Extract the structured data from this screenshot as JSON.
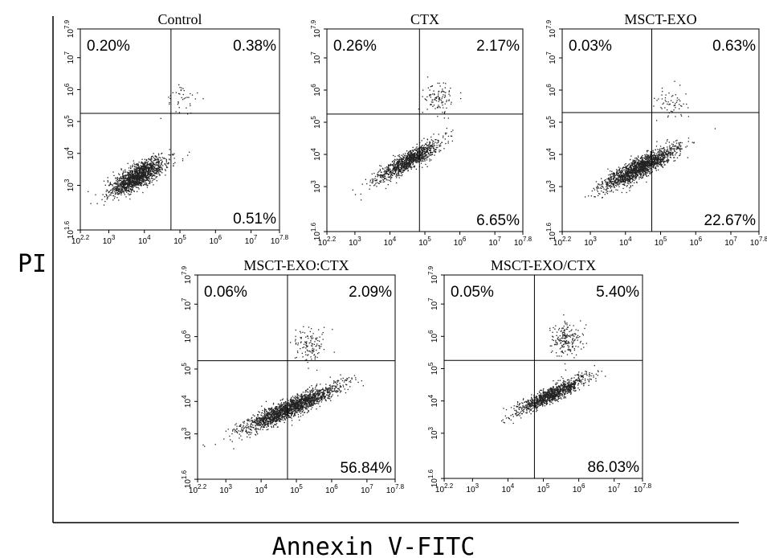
{
  "figure": {
    "y_axis_label": "PI",
    "x_axis_label": "Annexin V-FITC"
  },
  "chart_data": [
    {
      "type": "scatter",
      "title": "Control",
      "x_scale": "log",
      "y_scale": "log",
      "xlim": [
        158,
        63096000
      ],
      "ylim": [
        40,
        79433000
      ],
      "x_ticks": [
        "2.2",
        "3",
        "4",
        "5",
        "6",
        "7",
        "7.8"
      ],
      "y_ticks": [
        "1.6",
        "3",
        "4",
        "5",
        "6",
        "7",
        "7.9"
      ],
      "quadrant_gate": {
        "x": 56000,
        "y": 180000
      },
      "quadrants": {
        "upper_left": "0.20%",
        "upper_right": "0.38%",
        "lower_right": "0.51%"
      },
      "population": {
        "center_log": [
          3.8,
          3.3
        ],
        "count": 1500,
        "spread": 0.28,
        "elong": 0.45,
        "slope": 0.7
      },
      "upper_population": {
        "center_log": [
          5.1,
          5.7
        ],
        "count": 40
      },
      "colors": {
        "points": "#222222"
      }
    },
    {
      "type": "scatter",
      "title": "CTX",
      "x_scale": "log",
      "y_scale": "log",
      "xlim": [
        158,
        63096000
      ],
      "ylim": [
        40,
        79433000
      ],
      "x_ticks": [
        "2.2",
        "3",
        "4",
        "5",
        "6",
        "7",
        "7.8"
      ],
      "y_ticks": [
        "1.6",
        "3",
        "4",
        "5",
        "6",
        "7",
        "7.9"
      ],
      "quadrant_gate": {
        "x": 70000,
        "y": 180000
      },
      "quadrants": {
        "upper_left": "0.26%",
        "upper_right": "2.17%",
        "lower_right": "6.65%"
      },
      "population": {
        "center_log": [
          4.5,
          3.8
        ],
        "count": 1100,
        "spread": 0.22,
        "elong": 0.55,
        "slope": 0.65
      },
      "upper_population": {
        "center_log": [
          5.4,
          5.75
        ],
        "count": 110
      },
      "colors": {
        "points": "#222222"
      }
    },
    {
      "type": "scatter",
      "title": "MSCT-EXO",
      "x_scale": "log",
      "y_scale": "log",
      "xlim": [
        158,
        63096000
      ],
      "ylim": [
        40,
        79433000
      ],
      "x_ticks": [
        "2.2",
        "3",
        "4",
        "5",
        "6",
        "7",
        "7.8"
      ],
      "y_ticks": [
        "1.6",
        "3",
        "4",
        "5",
        "6",
        "7",
        "7.9"
      ],
      "quadrant_gate": {
        "x": 56000,
        "y": 200000
      },
      "quadrants": {
        "upper_left": "0.03%",
        "upper_right": "0.63%",
        "lower_right": "22.67%"
      },
      "population": {
        "center_log": [
          4.4,
          3.6
        ],
        "count": 1700,
        "spread": 0.25,
        "elong": 0.6,
        "slope": 0.6
      },
      "upper_population": {
        "center_log": [
          5.3,
          5.6
        ],
        "count": 60
      },
      "colors": {
        "points": "#222222"
      }
    },
    {
      "type": "scatter",
      "title": "MSCT-EXO:CTX",
      "x_scale": "log",
      "y_scale": "log",
      "xlim": [
        158,
        63096000
      ],
      "ylim": [
        40,
        79433000
      ],
      "x_ticks": [
        "2.2",
        "3",
        "4",
        "5",
        "6",
        "7",
        "7.8"
      ],
      "y_ticks": [
        "1.6",
        "3",
        "4",
        "5",
        "6",
        "7",
        "7.9"
      ],
      "quadrant_gate": {
        "x": 56000,
        "y": 180000
      },
      "quadrants": {
        "upper_left": "0.06%",
        "upper_right": "2.09%",
        "lower_right": "56.84%"
      },
      "population": {
        "center_log": [
          4.8,
          3.8
        ],
        "count": 1900,
        "spread": 0.24,
        "elong": 0.75,
        "slope": 0.5
      },
      "upper_population": {
        "center_log": [
          5.4,
          5.75
        ],
        "count": 120
      },
      "colors": {
        "points": "#222222"
      }
    },
    {
      "type": "scatter",
      "title": "MSCT-EXO/CTX",
      "x_scale": "log",
      "y_scale": "log",
      "xlim": [
        158,
        63096000
      ],
      "ylim": [
        40,
        79433000
      ],
      "x_ticks": [
        "2.2",
        "3",
        "4",
        "5",
        "6",
        "7",
        "7.8"
      ],
      "y_ticks": [
        "1.6",
        "3",
        "4",
        "5",
        "6",
        "7",
        "7.9"
      ],
      "quadrant_gate": {
        "x": 56000,
        "y": 180000
      },
      "quadrants": {
        "upper_left": "0.05%",
        "upper_right": "5.40%",
        "lower_right": "86.03%"
      },
      "population": {
        "center_log": [
          5.2,
          4.2
        ],
        "count": 1100,
        "spread": 0.2,
        "elong": 0.55,
        "slope": 0.55
      },
      "upper_population": {
        "center_log": [
          5.6,
          5.9
        ],
        "count": 200
      },
      "colors": {
        "points": "#222222"
      }
    }
  ]
}
